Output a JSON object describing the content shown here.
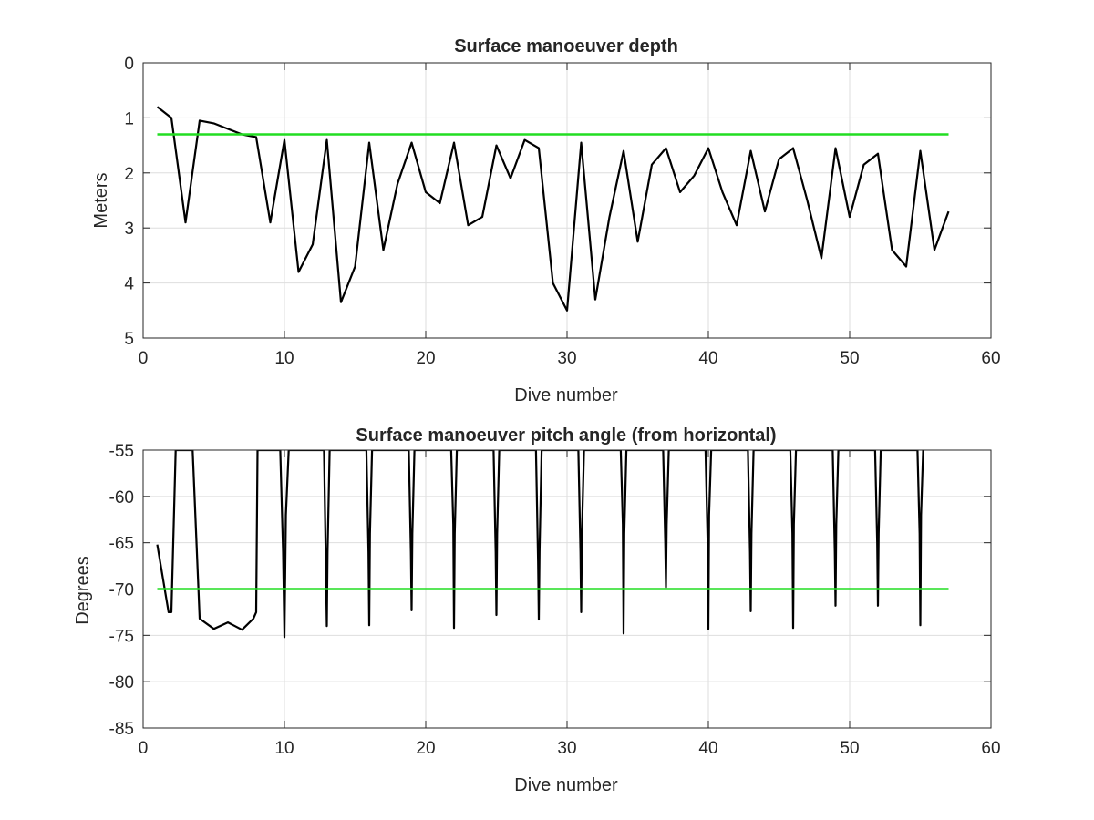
{
  "chart_data": [
    {
      "type": "line",
      "title": "Surface manoeuver depth",
      "xlabel": "Dive number",
      "ylabel": "Meters",
      "xlim": [
        0,
        60
      ],
      "ylim": [
        0,
        5
      ],
      "y_reversed": true,
      "xticks": [
        0,
        10,
        20,
        30,
        40,
        50,
        60
      ],
      "yticks": [
        0,
        1,
        2,
        3,
        4,
        5
      ],
      "xtick_labels": [
        "0",
        "10",
        "20",
        "30",
        "40",
        "50",
        "60"
      ],
      "ytick_labels": [
        "0",
        "1",
        "2",
        "3",
        "4",
        "5"
      ],
      "grid": true,
      "series": [
        {
          "color": "#000000",
          "x": [
            1,
            2,
            3,
            4,
            5,
            6,
            7,
            8,
            9,
            10,
            11,
            12,
            13,
            14,
            15,
            16,
            17,
            18,
            19,
            20,
            21,
            22,
            23,
            24,
            25,
            26,
            27,
            28,
            29,
            30,
            31,
            32,
            33,
            34,
            35,
            36,
            37,
            38,
            39,
            40,
            41,
            42,
            43,
            44,
            45,
            46,
            47,
            48,
            49,
            50,
            51,
            52,
            53,
            54,
            55,
            56,
            57
          ],
          "values": [
            0.8,
            1.0,
            2.9,
            1.05,
            1.1,
            1.2,
            1.3,
            1.35,
            2.9,
            1.4,
            3.8,
            3.3,
            1.4,
            4.35,
            3.7,
            1.45,
            3.4,
            2.2,
            1.45,
            2.35,
            2.55,
            1.45,
            2.95,
            2.8,
            1.5,
            2.1,
            1.4,
            1.55,
            4.0,
            4.5,
            1.45,
            4.3,
            2.8,
            1.6,
            3.25,
            1.85,
            1.55,
            2.35,
            2.05,
            1.55,
            2.35,
            2.95,
            1.6,
            2.7,
            1.75,
            1.55,
            2.5,
            3.55,
            1.55,
            2.8,
            1.85,
            1.65,
            3.4,
            3.7,
            1.6,
            3.4,
            2.7
          ]
        },
        {
          "color": "#22dd22",
          "x": [
            1,
            57
          ],
          "values": [
            1.3,
            1.3
          ]
        }
      ]
    },
    {
      "type": "line",
      "title": "Surface manoeuver pitch angle (from horizontal)",
      "xlabel": "Dive number",
      "ylabel": "Degrees",
      "xlim": [
        0,
        60
      ],
      "ylim": [
        -85,
        -55
      ],
      "xticks": [
        0,
        10,
        20,
        30,
        40,
        50,
        60
      ],
      "yticks": [
        -55,
        -60,
        -65,
        -70,
        -75,
        -80,
        -85
      ],
      "xtick_labels": [
        "0",
        "10",
        "20",
        "30",
        "40",
        "50",
        "60"
      ],
      "ytick_labels": [
        "-55",
        "-60",
        "-65",
        "-70",
        "-75",
        "-80",
        "-85"
      ],
      "grid": true,
      "series": [
        {
          "color": "#000000",
          "x": [
            1,
            1.8,
            2,
            2.3,
            3.5,
            4,
            5,
            6,
            7,
            7.8,
            8,
            8.1,
            8.3,
            9.7,
            9.9,
            10,
            10.1,
            10.3,
            12.8,
            12.95,
            13,
            13.05,
            13.2,
            15.8,
            15.95,
            16,
            16.05,
            16.2,
            18.8,
            18.95,
            19,
            19.05,
            19.2,
            21.8,
            21.95,
            22,
            22.05,
            22.2,
            24.8,
            24.95,
            25,
            25.05,
            25.2,
            27.8,
            27.95,
            28,
            28.05,
            28.2,
            30.8,
            30.95,
            31,
            31.05,
            31.2,
            33.8,
            33.95,
            34,
            34.05,
            34.2,
            36.8,
            36.95,
            37,
            37.05,
            37.2,
            39.8,
            39.95,
            40,
            40.05,
            40.2,
            42.8,
            42.95,
            43,
            43.05,
            43.2,
            45.8,
            45.95,
            46,
            46.05,
            46.2,
            48.8,
            48.95,
            49,
            49.05,
            49.2,
            51.8,
            51.95,
            52,
            52.05,
            52.2,
            54.8,
            54.95,
            55,
            55.05,
            55.2
          ],
          "values": [
            -65.2,
            -72.5,
            -72.5,
            -55,
            -55,
            -73.2,
            -74.3,
            -73.6,
            -74.4,
            -73.2,
            -72.5,
            -55,
            -55,
            -55,
            -66,
            -75.2,
            -62,
            -55,
            -55,
            -69,
            -74,
            -66,
            -55,
            -55,
            -66,
            -73.9,
            -64,
            -55,
            -55,
            -66,
            -72.3,
            -64,
            -55,
            -55,
            -63,
            -74.2,
            -64,
            -55,
            -55,
            -66,
            -72.8,
            -64,
            -55,
            -55,
            -67,
            -73.3,
            -66,
            -55,
            -55,
            -66,
            -72.5,
            -64,
            -55,
            -55,
            -63,
            -74.8,
            -64,
            -55,
            -55,
            -65,
            -69.8,
            -63,
            -55,
            -55,
            -65,
            -74.3,
            -62,
            -55,
            -55,
            -66,
            -72.4,
            -64,
            -55,
            -55,
            -64,
            -74.2,
            -63,
            -55,
            -55,
            -66,
            -71.8,
            -63,
            -55,
            -55,
            -65,
            -71.8,
            -64,
            -55,
            -55,
            -64,
            -73.9,
            -62,
            -55
          ]
        },
        {
          "color": "#22dd22",
          "x": [
            1,
            57
          ],
          "values": [
            -70,
            -70
          ]
        }
      ]
    }
  ]
}
